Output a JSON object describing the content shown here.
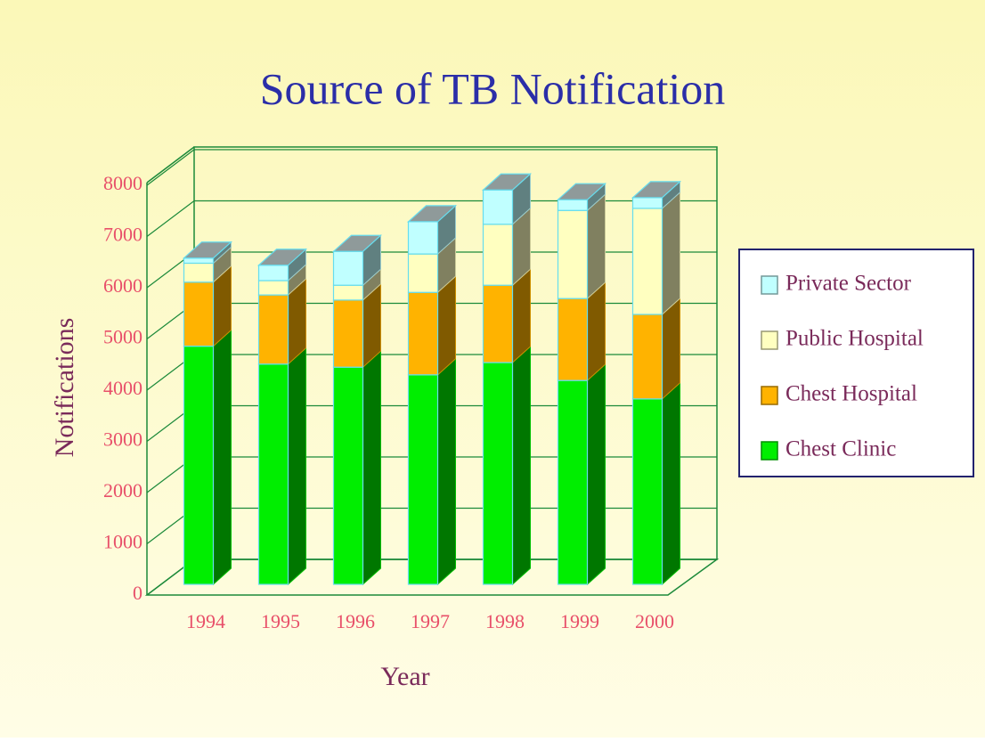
{
  "chart_data": {
    "type": "bar3d_stacked",
    "title": "Source of TB Notification",
    "x_label": "Year",
    "y_label": "Notifications",
    "categories": [
      "1994",
      "1995",
      "1996",
      "1997",
      "1998",
      "1999",
      "2000"
    ],
    "series": [
      {
        "name": "Chest Clinic",
        "color": "#00ee00",
        "values": [
          4650,
          4300,
          4240,
          4090,
          4330,
          3980,
          3620
        ]
      },
      {
        "name": "Chest Hospital",
        "color": "#ffb300",
        "values": [
          1250,
          1350,
          1310,
          1610,
          1510,
          1600,
          1650
        ]
      },
      {
        "name": "Public Hospital",
        "color": "#ffffc0",
        "values": [
          370,
          280,
          290,
          750,
          1190,
          1720,
          2070
        ]
      },
      {
        "name": "Private Sector",
        "color": "#c0ffff",
        "values": [
          100,
          300,
          660,
          630,
          670,
          210,
          210
        ]
      }
    ],
    "ylim": [
      0,
      8000
    ],
    "yticks": [
      0,
      1000,
      2000,
      3000,
      4000,
      5000,
      6000,
      7000,
      8000
    ],
    "grid": true
  }
}
